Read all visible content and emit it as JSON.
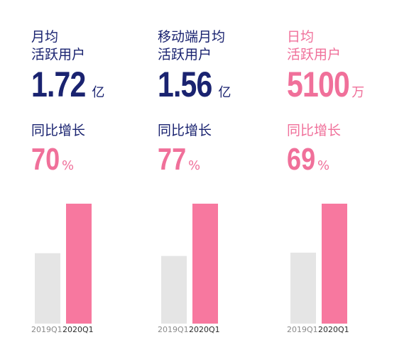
{
  "colors": {
    "navy": "#1a2370",
    "pink": "#f0709a",
    "bar_previous": "#e5e5e5",
    "bar_current": "#f7789f"
  },
  "chart_data": [
    {
      "type": "bar",
      "title": "月均活跃用户",
      "categories": [
        "2019Q1",
        "2020Q1"
      ],
      "values": [
        1.01,
        1.72
      ],
      "ylim": [
        0,
        1.72
      ],
      "headline": {
        "value": "1.72",
        "unit": "亿"
      },
      "growth": {
        "label": "同比增长",
        "value": "70",
        "unit": "%"
      }
    },
    {
      "type": "bar",
      "title": "移动端月均活跃用户",
      "categories": [
        "2019Q1",
        "2020Q1"
      ],
      "values": [
        0.88,
        1.56
      ],
      "ylim": [
        0,
        1.56
      ],
      "headline": {
        "value": "1.56",
        "unit": "亿"
      },
      "growth": {
        "label": "同比增长",
        "value": "77",
        "unit": "%"
      }
    },
    {
      "type": "bar",
      "title": "日均活跃用户",
      "categories": [
        "2019Q1",
        "2020Q1"
      ],
      "values": [
        3018,
        5100
      ],
      "ylim": [
        0,
        5100
      ],
      "headline": {
        "value": "5100",
        "unit": "万"
      },
      "growth": {
        "label": "同比增长",
        "value": "69",
        "unit": "%"
      }
    }
  ],
  "panels": [
    {
      "title_lines": [
        "月均",
        "活跃用户"
      ],
      "title_color": "#1a2370",
      "number_color": "#1a2370",
      "growth_label_color": "#1a2370",
      "growth_color": "#f0709a"
    },
    {
      "title_lines": [
        "移动端月均",
        "活跃用户"
      ],
      "title_color": "#1a2370",
      "number_color": "#1a2370",
      "growth_label_color": "#1a2370",
      "growth_color": "#f0709a"
    },
    {
      "title_lines": [
        "日均",
        "活跃用户"
      ],
      "title_color": "#f0709a",
      "number_color": "#f0709a",
      "growth_label_color": "#f0709a",
      "growth_color": "#f0709a"
    }
  ]
}
